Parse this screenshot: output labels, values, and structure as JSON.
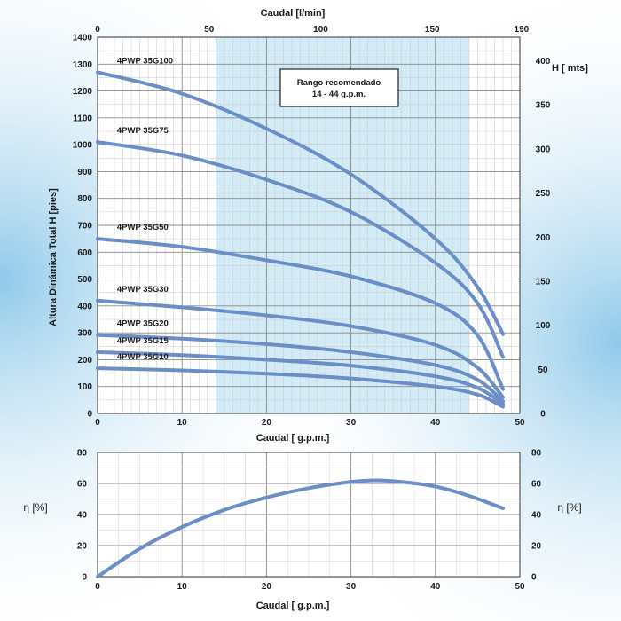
{
  "chart_data": [
    {
      "type": "line",
      "top_axis_label": "Caudal [l/min]",
      "top_ticks": [
        0,
        50,
        100,
        150,
        190
      ],
      "xlabel": "Caudal [ g.p.m.]",
      "ylabel": "Altura Dinámica Total H [pies]",
      "right_axis_label": "H [ mts]",
      "xlim": [
        0,
        50
      ],
      "ylim": [
        0,
        1400
      ],
      "x_ticks": [
        0,
        10,
        20,
        30,
        40,
        50
      ],
      "y_ticks": [
        0,
        100,
        200,
        300,
        400,
        500,
        600,
        700,
        800,
        900,
        1000,
        1100,
        1200,
        1300,
        1400
      ],
      "right_ticks": [
        0,
        50,
        100,
        150,
        200,
        250,
        300,
        350,
        400
      ],
      "recommended_range": {
        "text_line1": "Rango recomendado",
        "text_line2": "14 - 44 g.p.m.",
        "from": 14,
        "to": 44
      },
      "grid": true,
      "series": [
        {
          "name": "4PWP 35G100",
          "x": [
            0,
            10,
            20,
            30,
            40,
            45,
            48
          ],
          "values": [
            1270,
            1190,
            1060,
            890,
            650,
            470,
            295
          ]
        },
        {
          "name": "4PWP 35G75",
          "x": [
            0,
            10,
            20,
            30,
            40,
            45,
            48
          ],
          "values": [
            1010,
            960,
            870,
            750,
            560,
            410,
            210
          ]
        },
        {
          "name": "4PWP 35G50",
          "x": [
            0,
            10,
            20,
            30,
            40,
            45,
            48
          ],
          "values": [
            650,
            620,
            570,
            510,
            410,
            290,
            90
          ]
        },
        {
          "name": "4PWP 35G30",
          "x": [
            0,
            10,
            20,
            30,
            40,
            45,
            48
          ],
          "values": [
            420,
            395,
            365,
            325,
            255,
            170,
            60
          ]
        },
        {
          "name": "4PWP 35G20",
          "x": [
            0,
            10,
            20,
            30,
            40,
            45,
            48
          ],
          "values": [
            292,
            278,
            258,
            228,
            180,
            125,
            45
          ]
        },
        {
          "name": "4PWP 35G15",
          "x": [
            0,
            10,
            20,
            30,
            40,
            45,
            48
          ],
          "values": [
            228,
            217,
            200,
            178,
            138,
            95,
            35
          ]
        },
        {
          "name": "4PWP 35G10",
          "x": [
            0,
            10,
            20,
            30,
            40,
            45,
            48
          ],
          "values": [
            168,
            160,
            148,
            130,
            100,
            70,
            25
          ]
        }
      ],
      "line_color": "#6a8fc8"
    },
    {
      "type": "line",
      "xlabel": "Caudal [ g.p.m.]",
      "ylabel": "η [%]",
      "right_label": "η [%]",
      "xlim": [
        0,
        50
      ],
      "ylim": [
        0,
        80
      ],
      "x_ticks": [
        0,
        10,
        20,
        30,
        40,
        50
      ],
      "y_ticks": [
        0,
        20,
        40,
        60,
        80
      ],
      "grid": true,
      "series": [
        {
          "x": [
            0,
            5,
            10,
            15,
            20,
            25,
            30,
            33,
            36,
            40,
            44,
            48
          ],
          "values": [
            0,
            18,
            32,
            43,
            51,
            57,
            61,
            62,
            61,
            58,
            52,
            44
          ]
        }
      ],
      "line_color": "#6a8fc8"
    }
  ]
}
